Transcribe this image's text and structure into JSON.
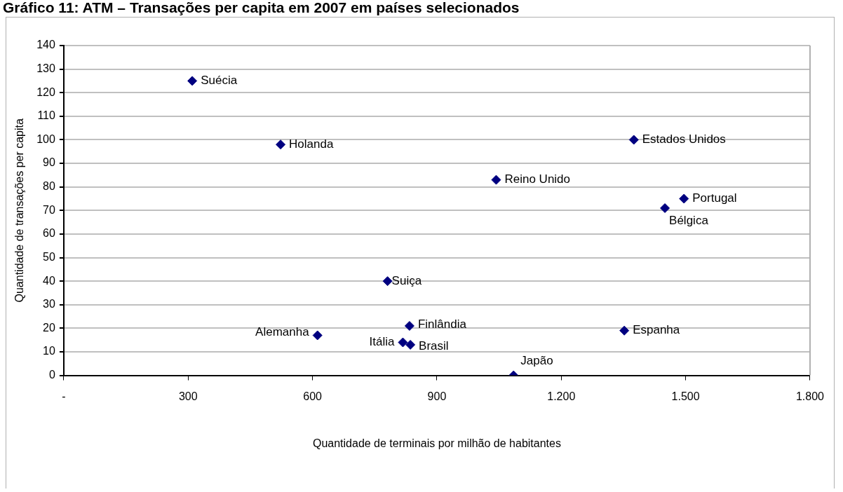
{
  "chart_data": {
    "type": "scatter",
    "title": "Gráfico 11: ATM – Transações per capita em 2007 em países selecionados",
    "xlabel": "Quantidade de terminais por milhão de habitantes",
    "ylabel": "Quantidade de transações per capita",
    "series": [
      {
        "color": "#000080",
        "x": [
          310,
          523,
          1375,
          1043,
          1496,
          1450,
          781,
          834,
          612,
          818,
          836,
          1085,
          1352
        ],
        "values": [
          125,
          98,
          100,
          83,
          75,
          71,
          40,
          21,
          17,
          14,
          13,
          0,
          19
        ]
      }
    ],
    "annotations": [
      {
        "text": "Suécia",
        "x": 310,
        "y": 125
      },
      {
        "text": "Holanda",
        "x": 523,
        "y": 98
      },
      {
        "text": "Estados Unidos",
        "x": 1375,
        "y": 100
      },
      {
        "text": "Reino Unido",
        "x": 1043,
        "y": 83
      },
      {
        "text": "Portugal",
        "x": 1496,
        "y": 75
      },
      {
        "text": "Bélgica",
        "x": 1450,
        "y": 71
      },
      {
        "text": "Suiça",
        "x": 781,
        "y": 40
      },
      {
        "text": "Finlândia",
        "x": 834,
        "y": 21
      },
      {
        "text": "Alemanha",
        "x": 612,
        "y": 17
      },
      {
        "text": "Itália",
        "x": 818,
        "y": 14
      },
      {
        "text": "Brasil",
        "x": 836,
        "y": 13
      },
      {
        "text": "Japão",
        "x": 1085,
        "y": 0
      },
      {
        "text": "Espanha",
        "x": 1352,
        "y": 19
      }
    ],
    "xlim": [
      0,
      1800
    ],
    "xticks": [
      {
        "value": 0,
        "label": "-"
      },
      300,
      600,
      900,
      {
        "value": 1200,
        "label": "1.200"
      },
      {
        "value": 1500,
        "label": "1.500"
      },
      {
        "value": 1800,
        "label": "1.800"
      }
    ],
    "ylim": [
      0,
      140
    ],
    "yticks": [
      0,
      10,
      20,
      30,
      40,
      50,
      60,
      70,
      80,
      90,
      100,
      110,
      120,
      130,
      140
    ],
    "grid": "y",
    "legend": false,
    "marker": "diamond"
  }
}
